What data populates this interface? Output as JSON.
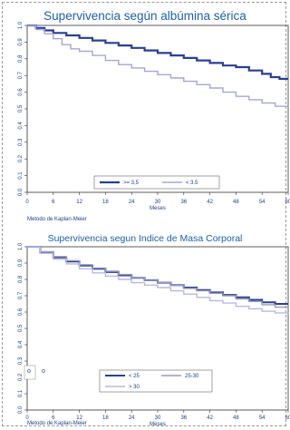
{
  "chart_data": [
    {
      "type": "line",
      "title": "Supervivencia según albúmina sérica",
      "xlabel": "Meses",
      "ylabel": "",
      "footnote": "Metodo de Kaplan-Meier",
      "xlim": [
        0,
        60
      ],
      "ylim": [
        0,
        1
      ],
      "xticks": [
        "0",
        "6",
        "12",
        "18",
        "24",
        "30",
        "36",
        "42",
        "48",
        "54",
        "60"
      ],
      "yticks": [
        "0.0",
        "0.1",
        "0.2",
        "0.3",
        "0.4",
        "0.5",
        "0.6",
        "0.7",
        "0.8",
        "0.9",
        "1.0"
      ],
      "grid": false,
      "legend_position": "bottom",
      "series": [
        {
          "name": ">= 3,5",
          "color": "#2a3e94",
          "width": 2.2,
          "x": [
            0,
            2,
            4,
            6,
            9,
            12,
            15,
            18,
            21,
            24,
            27,
            30,
            33,
            36,
            39,
            42,
            45,
            48,
            51,
            54,
            56,
            58,
            60
          ],
          "y": [
            1.0,
            0.985,
            0.97,
            0.955,
            0.94,
            0.925,
            0.91,
            0.895,
            0.88,
            0.865,
            0.85,
            0.835,
            0.82,
            0.805,
            0.79,
            0.775,
            0.76,
            0.75,
            0.73,
            0.71,
            0.69,
            0.68,
            0.68
          ]
        },
        {
          "name": "< 3.5",
          "color": "#a6a6d8",
          "width": 1.4,
          "x": [
            0,
            2,
            4,
            6,
            8,
            10,
            12,
            15,
            18,
            21,
            24,
            27,
            30,
            33,
            36,
            39,
            42,
            45,
            48,
            51,
            54,
            57,
            60
          ],
          "y": [
            1.0,
            0.975,
            0.95,
            0.92,
            0.885,
            0.86,
            0.845,
            0.82,
            0.79,
            0.765,
            0.745,
            0.725,
            0.705,
            0.685,
            0.665,
            0.645,
            0.625,
            0.6,
            0.575,
            0.555,
            0.535,
            0.515,
            0.51
          ]
        }
      ]
    },
    {
      "type": "line",
      "title": "Supervivencia segun Indice de Masa Corporal",
      "xlabel": "Meses",
      "ylabel": "",
      "footnote": "Metodo de Kaplan-Meier",
      "xlim": [
        0,
        60
      ],
      "ylim": [
        0,
        1
      ],
      "xticks": [
        "0",
        "6",
        "12",
        "18",
        "24",
        "30",
        "36",
        "42",
        "48",
        "54",
        "60"
      ],
      "yticks": [
        "0.0",
        "0.1",
        "0.2",
        "0.3",
        "0.4",
        "0.5",
        "0.6",
        "0.7",
        "0.8",
        "0.9",
        "1.0"
      ],
      "grid": false,
      "legend_position": "bottom",
      "stray_marks": [
        "o",
        "o"
      ],
      "series": [
        {
          "name": "< 25",
          "color": "#2a3e94",
          "width": 2.0,
          "x": [
            0,
            3,
            6,
            9,
            12,
            15,
            18,
            21,
            24,
            27,
            30,
            33,
            36,
            39,
            42,
            45,
            48,
            51,
            54,
            57,
            60
          ],
          "y": [
            1.0,
            0.965,
            0.935,
            0.91,
            0.885,
            0.865,
            0.845,
            0.825,
            0.81,
            0.795,
            0.78,
            0.765,
            0.75,
            0.735,
            0.72,
            0.705,
            0.69,
            0.675,
            0.66,
            0.65,
            0.65
          ]
        },
        {
          "name": "25-30",
          "color": "#9a9ab8",
          "width": 1.4,
          "x": [
            0,
            3,
            6,
            9,
            12,
            15,
            18,
            21,
            24,
            27,
            30,
            33,
            36,
            39,
            42,
            45,
            48,
            51,
            54,
            57,
            60
          ],
          "y": [
            1.0,
            0.97,
            0.94,
            0.915,
            0.89,
            0.87,
            0.85,
            0.83,
            0.81,
            0.795,
            0.78,
            0.765,
            0.745,
            0.73,
            0.715,
            0.7,
            0.68,
            0.665,
            0.645,
            0.63,
            0.625
          ]
        },
        {
          "name": "> 30",
          "color": "#b8b8e8",
          "width": 1.4,
          "x": [
            0,
            3,
            6,
            9,
            12,
            15,
            18,
            21,
            24,
            27,
            30,
            33,
            36,
            39,
            42,
            45,
            48,
            51,
            54,
            57,
            60
          ],
          "y": [
            1.0,
            0.96,
            0.925,
            0.895,
            0.865,
            0.84,
            0.82,
            0.8,
            0.78,
            0.765,
            0.75,
            0.73,
            0.71,
            0.69,
            0.67,
            0.655,
            0.635,
            0.62,
            0.605,
            0.595,
            0.59
          ]
        }
      ]
    }
  ]
}
